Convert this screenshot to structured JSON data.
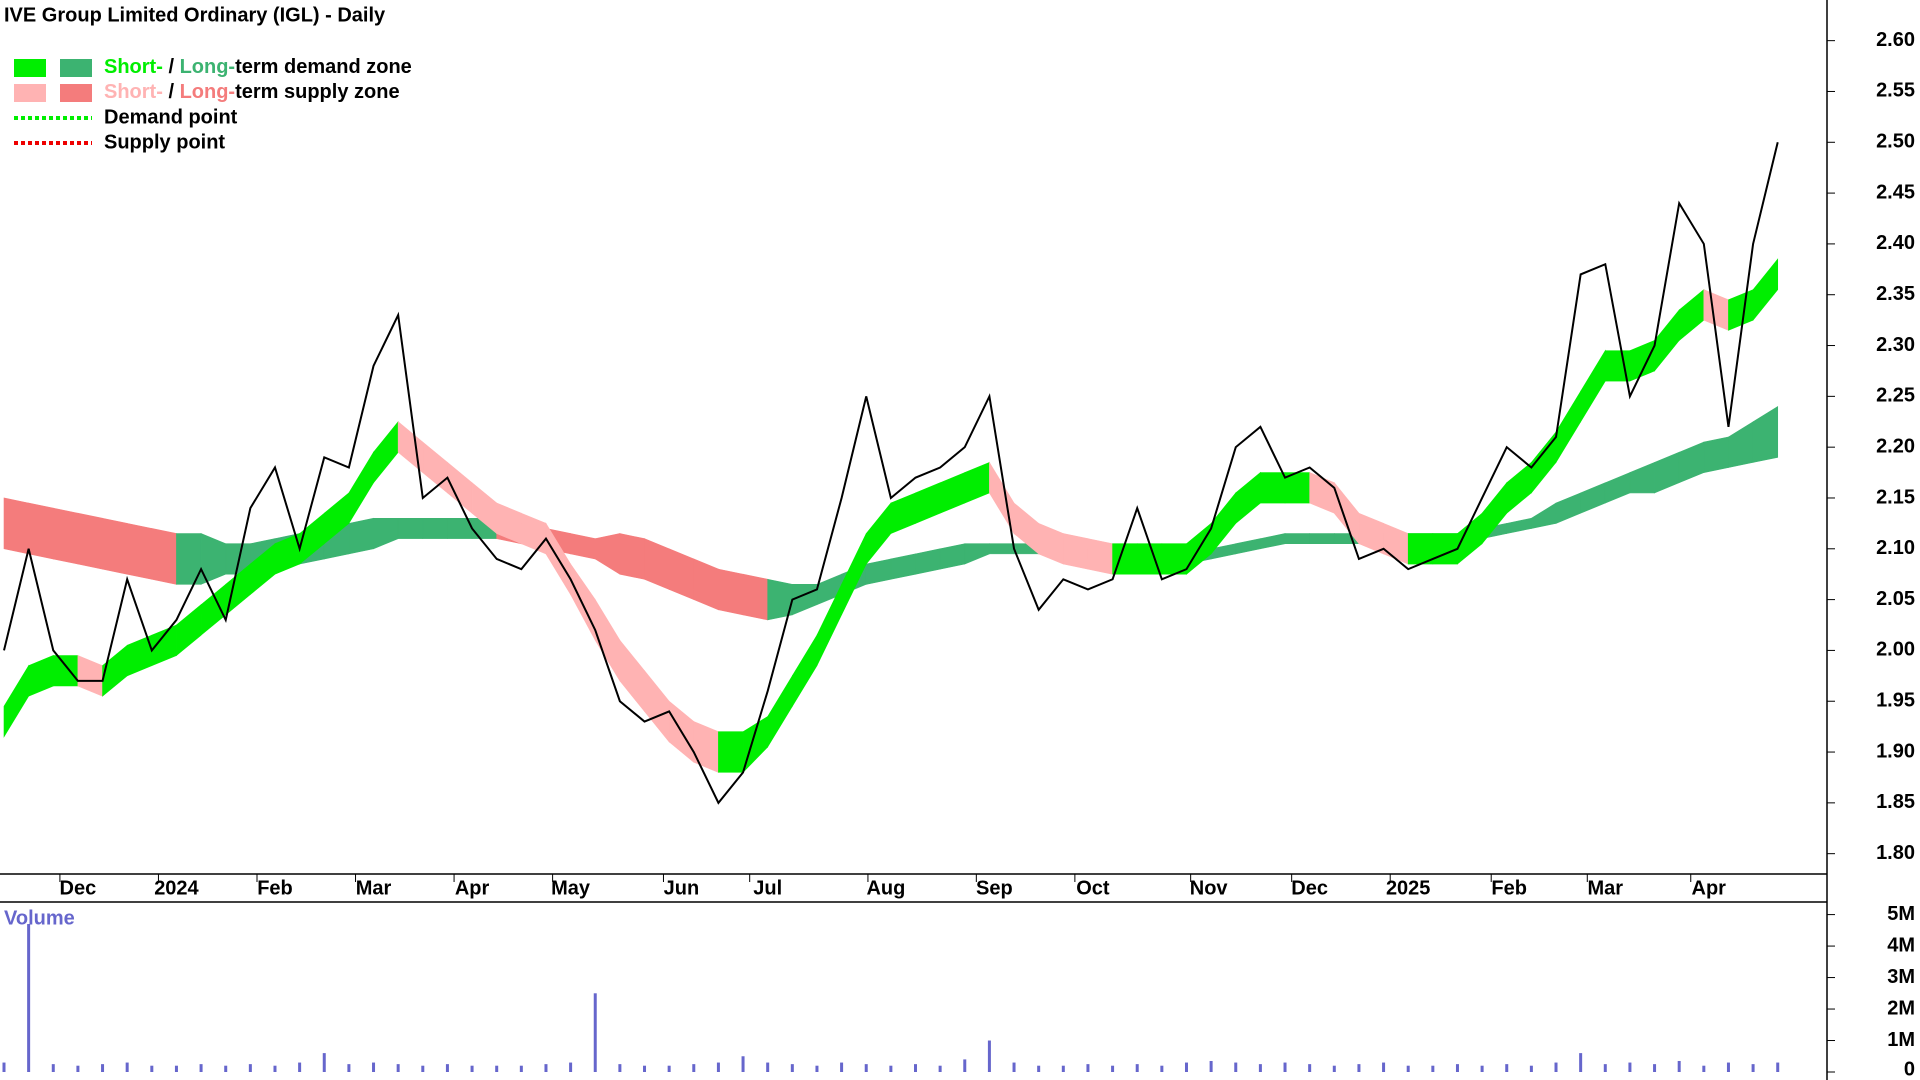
{
  "chart_data": {
    "type": "zone-line",
    "title": "IVE Group Limited Ordinary (IGL) - Daily",
    "legend": [
      {
        "short": "Short-",
        "sep": " / ",
        "long": "Long-",
        "rest": "term demand zone",
        "short_color": "#00ee00",
        "long_color": "#3cb371"
      },
      {
        "short": "Short-",
        "sep": " / ",
        "long": "Long-",
        "rest": "term supply zone",
        "short_color": "#ffb3b3",
        "long_color": "#f47c7c"
      },
      {
        "rest": "Demand point",
        "short_color": "#00ee00"
      },
      {
        "rest": "Supply point",
        "short_color": "#ee0000"
      }
    ],
    "price_color": "#000000",
    "close": [
      2.0,
      2.1,
      2.0,
      1.97,
      1.97,
      2.07,
      2.0,
      2.03,
      2.08,
      2.03,
      2.14,
      2.18,
      2.1,
      2.19,
      2.18,
      2.28,
      2.33,
      2.15,
      2.17,
      2.12,
      2.09,
      2.08,
      2.11,
      2.07,
      2.02,
      1.95,
      1.93,
      1.94,
      1.9,
      1.85,
      1.88,
      1.96,
      2.05,
      2.06,
      2.15,
      2.25,
      2.15,
      2.17,
      2.18,
      2.2,
      2.25,
      2.1,
      2.04,
      2.07,
      2.06,
      2.07,
      2.14,
      2.07,
      2.08,
      2.12,
      2.2,
      2.22,
      2.17,
      2.18,
      2.16,
      2.09,
      2.1,
      2.08,
      2.09,
      2.1,
      2.15,
      2.2,
      2.18,
      2.21,
      2.37,
      2.38,
      2.25,
      2.3,
      2.44,
      2.4,
      2.22,
      2.4,
      2.5
    ],
    "short_upper": [
      1.945,
      1.985,
      1.995,
      1.995,
      1.985,
      2.005,
      2.015,
      2.025,
      2.045,
      2.065,
      2.085,
      2.105,
      2.115,
      2.135,
      2.155,
      2.195,
      2.225,
      2.205,
      2.185,
      2.165,
      2.145,
      2.135,
      2.125,
      2.085,
      2.05,
      2.01,
      1.98,
      1.95,
      1.93,
      1.92,
      1.92,
      1.935,
      1.975,
      2.015,
      2.065,
      2.115,
      2.145,
      2.155,
      2.165,
      2.175,
      2.185,
      2.145,
      2.125,
      2.115,
      2.11,
      2.105,
      2.105,
      2.105,
      2.105,
      2.125,
      2.155,
      2.175,
      2.175,
      2.175,
      2.165,
      2.135,
      2.125,
      2.115,
      2.115,
      2.115,
      2.135,
      2.165,
      2.185,
      2.215,
      2.255,
      2.295,
      2.295,
      2.305,
      2.335,
      2.355,
      2.345,
      2.355,
      2.385
    ],
    "short_lower": [
      1.915,
      1.955,
      1.965,
      1.965,
      1.955,
      1.975,
      1.985,
      1.995,
      2.015,
      2.035,
      2.055,
      2.075,
      2.085,
      2.105,
      2.125,
      2.165,
      2.195,
      2.175,
      2.155,
      2.135,
      2.115,
      2.105,
      2.095,
      2.055,
      2.01,
      1.97,
      1.94,
      1.91,
      1.89,
      1.88,
      1.88,
      1.905,
      1.945,
      1.985,
      2.035,
      2.085,
      2.115,
      2.125,
      2.135,
      2.145,
      2.155,
      2.115,
      2.095,
      2.085,
      2.08,
      2.075,
      2.075,
      2.075,
      2.075,
      2.095,
      2.125,
      2.145,
      2.145,
      2.145,
      2.135,
      2.105,
      2.095,
      2.085,
      2.085,
      2.085,
      2.105,
      2.135,
      2.155,
      2.185,
      2.225,
      2.265,
      2.265,
      2.275,
      2.305,
      2.325,
      2.315,
      2.325,
      2.355
    ],
    "long_upper": [
      2.15,
      2.145,
      2.14,
      2.135,
      2.13,
      2.125,
      2.12,
      2.115,
      2.115,
      2.105,
      2.105,
      2.11,
      2.115,
      2.12,
      2.125,
      2.13,
      2.13,
      2.13,
      2.13,
      2.13,
      2.13,
      2.125,
      2.12,
      2.115,
      2.11,
      2.115,
      2.11,
      2.1,
      2.09,
      2.08,
      2.075,
      2.07,
      2.065,
      2.065,
      2.075,
      2.085,
      2.09,
      2.095,
      2.1,
      2.105,
      2.105,
      2.105,
      2.105,
      2.1,
      2.1,
      2.095,
      2.095,
      2.095,
      2.095,
      2.1,
      2.105,
      2.11,
      2.115,
      2.115,
      2.115,
      2.115,
      2.115,
      2.115,
      2.115,
      2.115,
      2.12,
      2.125,
      2.13,
      2.145,
      2.155,
      2.165,
      2.175,
      2.185,
      2.195,
      2.205,
      2.21,
      2.225,
      2.24
    ],
    "long_lower": [
      2.1,
      2.095,
      2.09,
      2.085,
      2.08,
      2.075,
      2.07,
      2.065,
      2.065,
      2.075,
      2.075,
      2.08,
      2.085,
      2.09,
      2.095,
      2.1,
      2.11,
      2.11,
      2.11,
      2.11,
      2.11,
      2.105,
      2.1,
      2.095,
      2.09,
      2.075,
      2.07,
      2.06,
      2.05,
      2.04,
      2.035,
      2.03,
      2.035,
      2.045,
      2.055,
      2.065,
      2.07,
      2.075,
      2.08,
      2.085,
      2.095,
      2.095,
      2.095,
      2.09,
      2.09,
      2.085,
      2.085,
      2.085,
      2.085,
      2.09,
      2.095,
      2.1,
      2.105,
      2.105,
      2.105,
      2.105,
      2.105,
      2.105,
      2.105,
      2.105,
      2.11,
      2.115,
      2.12,
      2.125,
      2.135,
      2.145,
      2.155,
      2.155,
      2.165,
      2.175,
      2.18,
      2.185,
      2.19
    ],
    "xlim": [
      0,
      74
    ],
    "xticks": [
      {
        "value": 3,
        "label": "Dec"
      },
      {
        "value": 7,
        "label": "2024"
      },
      {
        "value": 11,
        "label": "Feb"
      },
      {
        "value": 15,
        "label": "Mar"
      },
      {
        "value": 19,
        "label": "Apr"
      },
      {
        "value": 23,
        "label": "May"
      },
      {
        "value": 27.5,
        "label": "Jun"
      },
      {
        "value": 31,
        "label": "Jul"
      },
      {
        "value": 35.8,
        "label": "Aug"
      },
      {
        "value": 40.2,
        "label": "Sep"
      },
      {
        "value": 44.2,
        "label": "Oct"
      },
      {
        "value": 48.9,
        "label": "Nov"
      },
      {
        "value": 53,
        "label": "Dec"
      },
      {
        "value": 57,
        "label": "2025"
      },
      {
        "value": 61.1,
        "label": "Feb"
      },
      {
        "value": 65,
        "label": "Mar"
      },
      {
        "value": 69.2,
        "label": "Apr"
      }
    ],
    "ylim": [
      1.78,
      2.64
    ],
    "yticks": [
      {
        "value": 1.8,
        "label": "1.80"
      },
      1.85,
      {
        "value": 1.9,
        "label": "1.90"
      },
      1.95,
      {
        "value": 2,
        "label": "2.00"
      },
      2.05,
      {
        "value": 2.1,
        "label": "2.10"
      },
      2.15,
      {
        "value": 2.2,
        "label": "2.20"
      },
      2.25,
      {
        "value": 2.3,
        "label": "2.30"
      },
      2.35,
      {
        "value": 2.4,
        "label": "2.40"
      },
      2.45,
      {
        "value": 2.5,
        "label": "2.50"
      },
      2.55,
      {
        "value": 2.6,
        "label": "2.60"
      }
    ],
    "volume_label": "Volume",
    "volume_color": "#6666cc",
    "volume": [
      300000,
      4700000,
      250000,
      200000,
      250000,
      300000,
      200000,
      200000,
      250000,
      200000,
      250000,
      200000,
      300000,
      600000,
      250000,
      300000,
      250000,
      200000,
      250000,
      200000,
      200000,
      200000,
      250000,
      300000,
      2500000,
      250000,
      200000,
      200000,
      250000,
      300000,
      500000,
      300000,
      250000,
      200000,
      300000,
      250000,
      200000,
      250000,
      200000,
      400000,
      1000000,
      300000,
      200000,
      200000,
      250000,
      200000,
      250000,
      200000,
      300000,
      350000,
      300000,
      250000,
      300000,
      250000,
      200000,
      250000,
      300000,
      200000,
      200000,
      250000,
      200000,
      250000,
      200000,
      300000,
      600000,
      250000,
      300000,
      250000,
      350000,
      200000,
      300000,
      250000,
      300000
    ],
    "volume_ylim": [
      0,
      5400000
    ],
    "volume_yticks": [
      0,
      {
        "value": 1000000,
        "label": "1M"
      },
      {
        "value": 2000000,
        "label": "2M"
      },
      {
        "value": 3000000,
        "label": "3M"
      },
      {
        "value": 4000000,
        "label": "4M"
      },
      {
        "value": 5000000,
        "label": "5M"
      }
    ]
  }
}
